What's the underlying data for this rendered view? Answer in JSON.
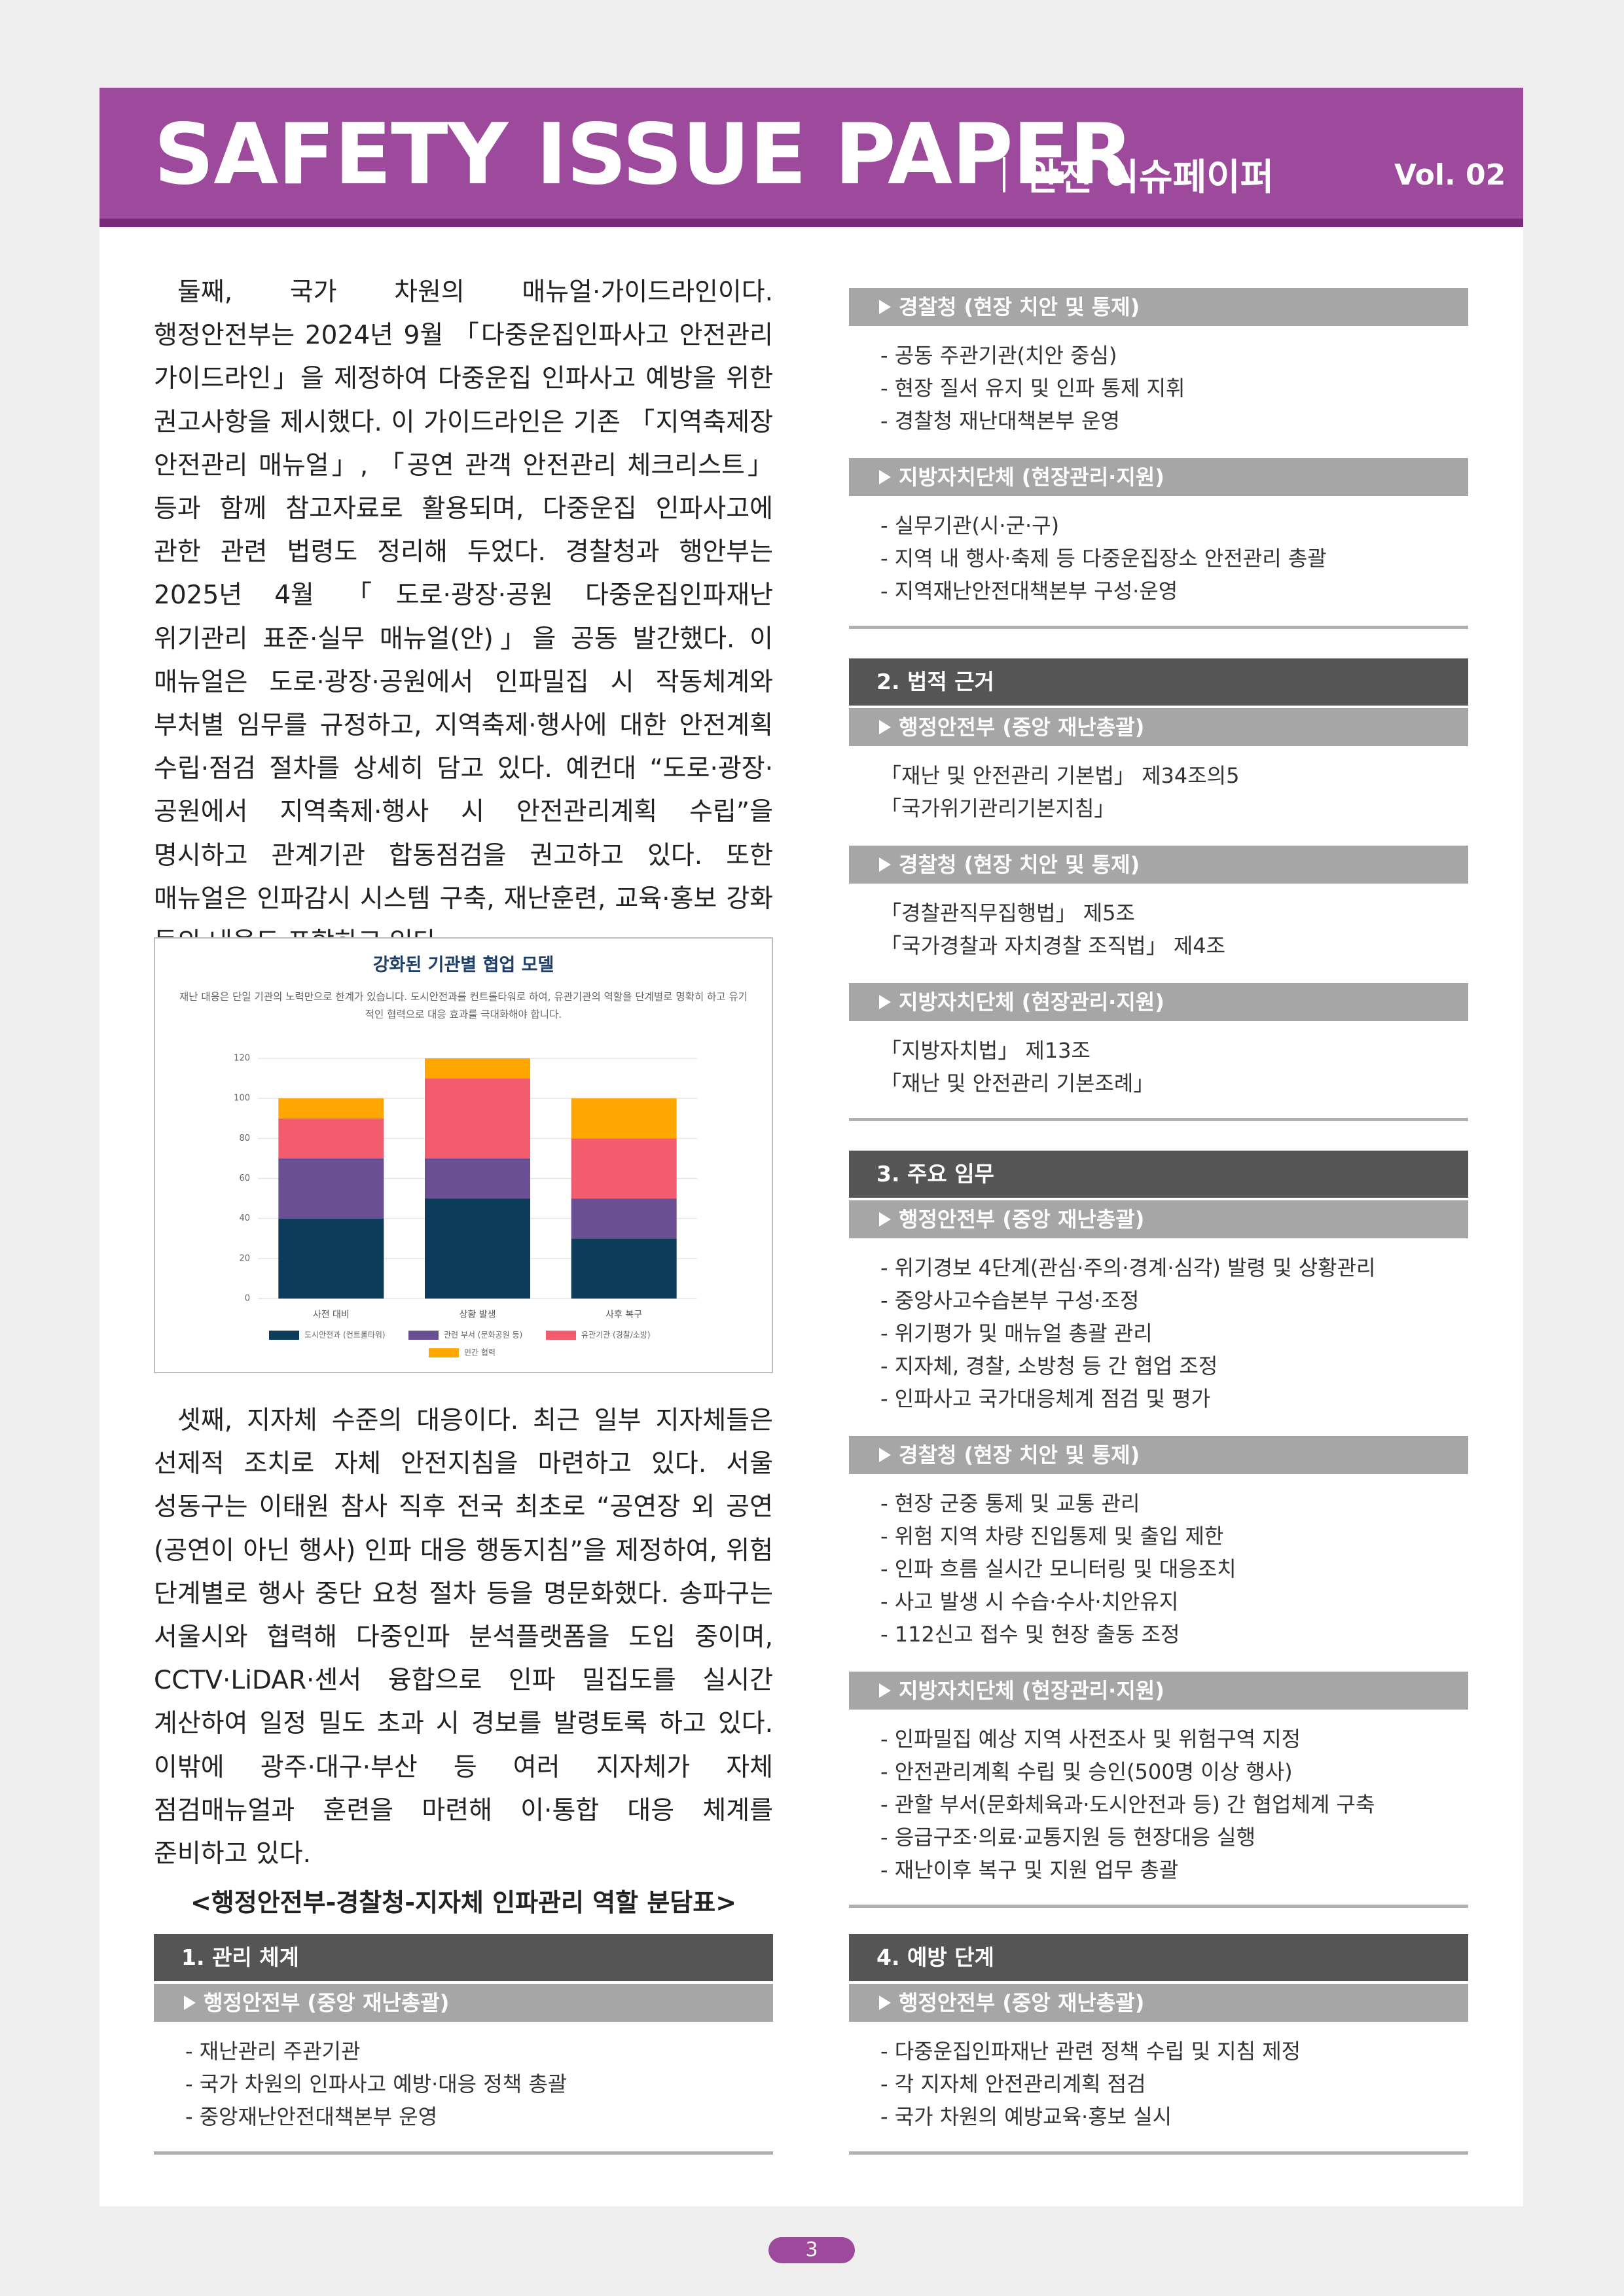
{
  "header": {
    "title": "SAFETY ISSUE PAPER",
    "subtitle": "안전 이슈페이퍼",
    "volume": "Vol. 02"
  },
  "paragraphs": [
    "둘째, 국가 차원의 매뉴얼·가이드라인이다. 행정안전부는 2024년 9월 「다중운집인파사고 안전관리 가이드라인」을 제정하여 다중운집 인파사고 예방을 위한 권고사항을 제시했다. 이 가이드라인은 기존 「지역축제장 안전관리 매뉴얼」, 「공연 관객 안전관리 체크리스트」등과 함께 참고자료로 활용되며, 다중운집 인파사고에 관한 관련 법령도 정리해 두었다. 경찰청과 행안부는 2025년 4월 「도로·광장·공원 다중운집인파재난 위기관리 표준·실무 매뉴얼(안)」을 공동 발간했다. 이 매뉴얼은 도로·광장·공원에서 인파밀집 시 작동체계와 부처별 임무를 규정하고, 지역축제·행사에 대한 안전계획 수립·점검 절차를 상세히 담고 있다. 예컨대 “도로·광장·공원에서 지역축제·행사 시 안전관리계획 수립”을 명시하고 관계기관 합동점검을 권고하고 있다. 또한 매뉴얼은 인파감시 시스템 구축, 재난훈련, 교육·홍보 강화 등의 내용도 포함하고 있다.",
    "셋째, 지자체 수준의 대응이다. 최근 일부 지자체들은 선제적 조치로 자체 안전지침을 마련하고 있다. 서울 성동구는 이태원 참사 직후 전국 최초로 “공연장 외 공연(공연이 아닌 행사) 인파 대응 행동지침”을 제정하여, 위험 단계별로 행사 중단 요청 절차 등을 명문화했다. 송파구는 서울시와 협력해 다중인파 분석플랫폼을 도입 중이며, CCTV·LiDAR·센서 융합으로 인파 밀집도를 실시간 계산하여 일정 밀도 초과 시 경보를 발령토록 하고 있다. 이밖에 광주·대구·부산 등 여러 지자체가 자체 점검매뉴얼과 훈련을 마련해 이·통합 대응 체계를 준비하고 있다."
  ],
  "chart_data": {
    "type": "stacked_bar",
    "title": "강화된 기관별 협업 모델",
    "subtitle": "재난 대응은 단일 기관의 노력만으로 한계가 있습니다. 도시안전과를 컨트롤타워로 하여, 유관기관의 역할을 단계별로 명확히 하고 유기적인 협력으로 대응 효과를 극대화해야 합니다.",
    "categories": [
      "사전 대비",
      "상황 발생",
      "사후 복구"
    ],
    "series": [
      {
        "name": "도시안전과 (컨트롤타워)",
        "color": "#0d3b5a",
        "values": [
          40,
          50,
          30
        ]
      },
      {
        "name": "관련 부서 (문화공원 등)",
        "color": "#6a4f94",
        "values": [
          30,
          20,
          20
        ]
      },
      {
        "name": "유관기관 (경찰/소방)",
        "color": "#f25c6e",
        "values": [
          20,
          40,
          30
        ]
      },
      {
        "name": "민간 협력",
        "color": "#ffa600",
        "values": [
          10,
          10,
          20
        ]
      }
    ],
    "ylim": [
      0,
      120
    ],
    "yticks": [
      0,
      20,
      40,
      60,
      80,
      100,
      120
    ],
    "grid": true,
    "legend": "bottom"
  },
  "table_title": "<행정안전부-경찰청-지자체 인파관리 역할 분담표>",
  "sections": [
    {
      "title": "1. 관리 체계",
      "groups": [
        {
          "agency": "행정안전부 (중앙 재난총괄)",
          "items": [
            "- 재난관리 주관기관",
            "- 국가 차원의 인파사고 예방·대응 정책 총괄",
            "- 중앙재난안전대책본부 운영"
          ]
        },
        {
          "agency": "경찰청 (현장 치안 및 통제)",
          "items": [
            "- 공동 주관기관(치안 중심)",
            "- 현장 질서 유지 및 인파 통제 지휘",
            "- 경찰청 재난대책본부 운영"
          ]
        },
        {
          "agency": "지방자치단체 (현장관리·지원)",
          "items": [
            "- 실무기관(시·군·구)",
            "- 지역 내 행사·축제 등 다중운집장소 안전관리 총괄",
            "- 지역재난안전대책본부 구성·운영"
          ]
        }
      ]
    },
    {
      "title": "2. 법적 근거",
      "groups": [
        {
          "agency": "행정안전부 (중앙 재난총괄)",
          "items": [
            "「재난 및 안전관리 기본법」 제34조의5",
            "「국가위기관리기본지침」"
          ]
        },
        {
          "agency": "경찰청 (현장 치안 및 통제)",
          "items": [
            "「경찰관직무집행법」 제5조",
            "「국가경찰과 자치경찰 조직법」 제4조"
          ]
        },
        {
          "agency": "지방자치단체 (현장관리·지원)",
          "items": [
            "「지방자치법」 제13조",
            "「재난 및 안전관리 기본조례」"
          ]
        }
      ]
    },
    {
      "title": "3. 주요 임무",
      "groups": [
        {
          "agency": "행정안전부 (중앙 재난총괄)",
          "items": [
            "- 위기경보 4단계(관심·주의·경계·심각) 발령 및 상황관리",
            "- 중앙사고수습본부 구성·조정",
            "- 위기평가 및 매뉴얼 총괄 관리",
            "- 지자체, 경찰, 소방청 등 간 협업 조정",
            "- 인파사고 국가대응체계 점검 및 평가"
          ]
        },
        {
          "agency": "경찰청 (현장 치안 및 통제)",
          "items": [
            "- 현장 군중 통제 및 교통 관리",
            "- 위험 지역 차량 진입통제 및 출입 제한",
            "- 인파 흐름 실시간 모니터링 및 대응조치",
            "- 사고 발생 시 수습·수사·치안유지",
            "- 112신고 접수 및 현장 출동 조정"
          ]
        },
        {
          "agency": "지방자치단체 (현장관리·지원)",
          "items": [
            "- 인파밀집 예상 지역 사전조사 및 위험구역 지정",
            "- 안전관리계획 수립 및 승인(500명 이상 행사)",
            "- 관할 부서(문화체육과·도시안전과 등) 간 협업체계 구축",
            "- 응급구조·의료·교통지원 등 현장대응 실행",
            "- 재난이후 복구 및 지원 업무 총괄"
          ]
        }
      ]
    },
    {
      "title": "4. 예방 단계",
      "groups": [
        {
          "agency": "행정안전부 (중앙 재난총괄)",
          "items": [
            "- 다중운집인파재난 관련 정책 수립 및 지침 제정",
            "- 각 지자체 안전관리계획 점검",
            "- 국가 차원의 예방교육·홍보 실시"
          ]
        }
      ]
    }
  ],
  "page_number": "3"
}
